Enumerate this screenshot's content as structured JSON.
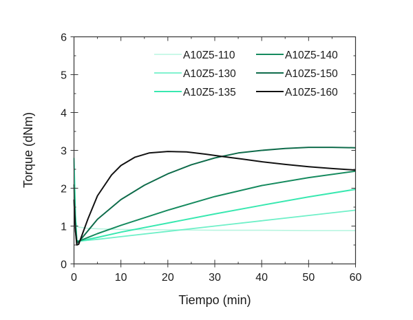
{
  "chart_data": {
    "type": "line",
    "title": "",
    "xlabel": "Tiempo (min)",
    "ylabel": "Torque (dNm)",
    "xlim": [
      0,
      60
    ],
    "ylim": [
      0,
      6
    ],
    "xticks": [
      0,
      10,
      20,
      30,
      40,
      50,
      60
    ],
    "yticks": [
      0,
      1,
      2,
      3,
      4,
      5,
      6
    ],
    "grid": false,
    "legend_position": "upper right, two columns",
    "series": [
      {
        "name": "A10Z5-110",
        "color": "#b8f5e0",
        "width": 1.6,
        "x": [
          0,
          0.3,
          0.6,
          1,
          3,
          5,
          10,
          20,
          30,
          40,
          50,
          60
        ],
        "y": [
          2.7,
          1.2,
          1.0,
          0.97,
          0.94,
          0.93,
          0.91,
          0.9,
          0.89,
          0.89,
          0.88,
          0.88
        ]
      },
      {
        "name": "A10Z5-130",
        "color": "#6ff0c8",
        "width": 1.8,
        "x": [
          0,
          0.3,
          0.6,
          1,
          5,
          10,
          20,
          30,
          40,
          50,
          60
        ],
        "y": [
          2.8,
          1.3,
          0.62,
          0.6,
          0.65,
          0.72,
          0.86,
          1.0,
          1.14,
          1.28,
          1.42
        ]
      },
      {
        "name": "A10Z5-135",
        "color": "#38e8b0",
        "width": 2,
        "x": [
          0,
          0.3,
          0.6,
          1,
          5,
          10,
          20,
          30,
          40,
          50,
          60
        ],
        "y": [
          2.8,
          1.3,
          0.62,
          0.6,
          0.7,
          0.84,
          1.08,
          1.32,
          1.55,
          1.77,
          1.97
        ]
      },
      {
        "name": "A10Z5-140",
        "color": "#158a5e",
        "width": 2,
        "x": [
          0,
          0.3,
          0.6,
          1,
          5,
          10,
          20,
          30,
          40,
          50,
          60
        ],
        "y": [
          2.1,
          1.0,
          0.6,
          0.6,
          0.8,
          1.02,
          1.42,
          1.78,
          2.07,
          2.28,
          2.45
        ]
      },
      {
        "name": "A10Z5-150",
        "color": "#0e6b4a",
        "width": 2,
        "x": [
          0,
          0.3,
          0.6,
          1,
          5,
          10,
          15,
          20,
          25,
          30,
          35,
          40,
          45,
          50,
          55,
          60
        ],
        "y": [
          1.7,
          0.9,
          0.55,
          0.58,
          1.18,
          1.7,
          2.08,
          2.38,
          2.62,
          2.8,
          2.93,
          3.0,
          3.05,
          3.08,
          3.08,
          3.07
        ]
      },
      {
        "name": "A10Z5-160",
        "color": "#111111",
        "width": 2,
        "x": [
          0,
          0.3,
          0.6,
          1,
          3,
          5,
          8,
          10,
          13,
          16,
          20,
          24,
          28,
          32,
          36,
          40,
          45,
          50,
          55,
          60
        ],
        "y": [
          1.7,
          0.9,
          0.5,
          0.52,
          1.2,
          1.8,
          2.35,
          2.6,
          2.82,
          2.93,
          2.97,
          2.96,
          2.9,
          2.83,
          2.77,
          2.7,
          2.63,
          2.57,
          2.52,
          2.48
        ]
      }
    ]
  },
  "axes": {
    "xlabel": "Tiempo (min)",
    "ylabel": "Torque (dNm)",
    "xtick_labels": [
      "0",
      "10",
      "20",
      "30",
      "40",
      "50",
      "60"
    ],
    "ytick_labels": [
      "0",
      "1",
      "2",
      "3",
      "4",
      "5",
      "6"
    ]
  },
  "legend": {
    "items": [
      "A10Z5-110",
      "A10Z5-140",
      "A10Z5-130",
      "A10Z5-150",
      "A10Z5-135",
      "A10Z5-160"
    ]
  }
}
